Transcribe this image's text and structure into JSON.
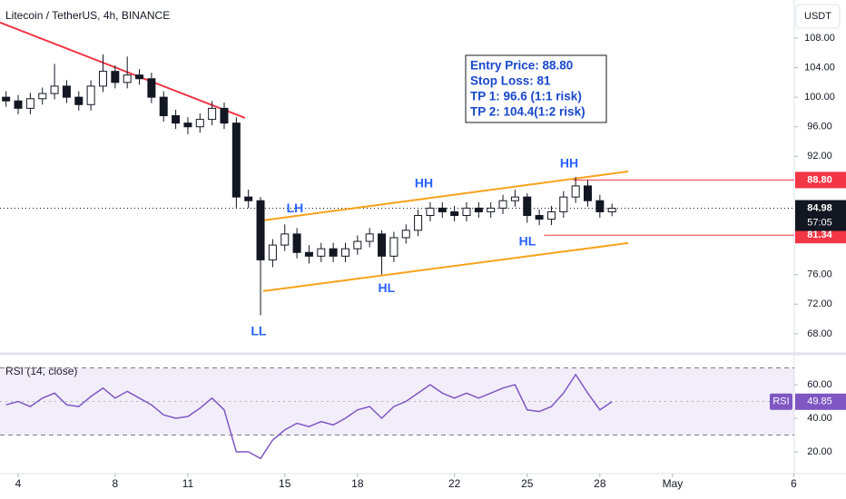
{
  "chart_data": {
    "type": "candlestick",
    "title": "Litecoin / TetherUS, 4h, BINANCE",
    "currency": "USDT",
    "up_color": "#ffffff",
    "down_color": "#131722",
    "wick_color": "#131722",
    "xlim": [
      3.25,
      36.02
    ],
    "xticks": [
      4,
      8,
      11,
      15,
      18,
      22,
      25,
      28,
      {
        "value": 31,
        "label": "May"
      },
      {
        "value": 36,
        "label": "6"
      }
    ],
    "ylim": [
      65.9,
      113.15
    ],
    "yticks": [
      {
        "value": 108,
        "label": "108.00"
      },
      {
        "value": 104,
        "label": "104.00"
      },
      {
        "value": 100,
        "label": "100.00"
      },
      {
        "value": 96,
        "label": "96.00"
      },
      {
        "value": 92,
        "label": "92.00"
      },
      {
        "value": 76,
        "label": "76.00"
      },
      {
        "value": 72,
        "label": "72.00"
      },
      {
        "value": 68,
        "label": "68.00"
      }
    ],
    "x": [
      3.5,
      4,
      4.5,
      5,
      5.5,
      6,
      6.5,
      7,
      7.5,
      8,
      8.5,
      9,
      9.5,
      10,
      10.5,
      11,
      11.5,
      12,
      12.5,
      13,
      13.5,
      14,
      14.5,
      15,
      15.5,
      16,
      16.5,
      17,
      17.5,
      18,
      18.5,
      19,
      19.5,
      20,
      20.5,
      21,
      21.5,
      22,
      22.5,
      23,
      23.5,
      24,
      24.5,
      25,
      25.5,
      26,
      26.5,
      27,
      27.5,
      28,
      28.5
    ],
    "open": [
      100,
      99.5,
      98.5,
      99.8,
      100.5,
      101.5,
      100,
      99,
      101.5,
      103.5,
      102,
      103,
      102.5,
      100,
      97.5,
      96.5,
      96,
      97,
      98.5,
      96.5,
      86.5,
      86,
      78,
      80,
      81.5,
      79,
      78.5,
      79.5,
      78.5,
      79.5,
      80.5,
      81.5,
      78.5,
      81,
      82,
      84,
      85,
      84.5,
      84,
      85,
      84.5,
      85,
      86,
      86.5,
      84,
      83.5,
      84.5,
      86.5,
      88,
      86,
      84.5
    ],
    "high": [
      100.8,
      100.3,
      100.6,
      101.3,
      104.5,
      102.3,
      100.8,
      102.3,
      105.8,
      104.3,
      105.5,
      103.8,
      103.3,
      100.8,
      98.3,
      97.3,
      97.8,
      99.5,
      99.3,
      97.3,
      87.5,
      86.5,
      80.8,
      82.8,
      82.3,
      80,
      80.3,
      80.3,
      80.3,
      81.3,
      82.3,
      82,
      81.8,
      82.8,
      84.8,
      85.8,
      85.8,
      85.3,
      85.8,
      85.8,
      85.8,
      86.8,
      87.5,
      87,
      84.8,
      85.3,
      87.3,
      89.2,
      88.8,
      86.8,
      85.6
    ],
    "low": [
      98.7,
      97.7,
      97.7,
      99,
      99.7,
      99.2,
      98.2,
      98.2,
      100.7,
      101.2,
      101.2,
      101.7,
      99.2,
      96.7,
      95.7,
      95,
      95.2,
      96.2,
      95.7,
      85,
      85,
      70.5,
      77,
      79.2,
      78.2,
      77.5,
      77.7,
      77.7,
      77.7,
      78.7,
      79.7,
      76,
      77.7,
      80.2,
      81.2,
      83.2,
      83.7,
      83.2,
      83.2,
      83.7,
      83.7,
      84.2,
      85.2,
      83,
      82.7,
      82.7,
      83.7,
      85.7,
      85.2,
      83.7,
      83.9
    ],
    "close": [
      99.5,
      98.5,
      99.8,
      100.5,
      101.5,
      100,
      99,
      101.5,
      103.5,
      102,
      103,
      102.5,
      100,
      97.5,
      96.5,
      96,
      97,
      98.5,
      96.5,
      86.5,
      86,
      78,
      80,
      81.5,
      79,
      78.5,
      79.5,
      78.5,
      79.5,
      80.5,
      81.5,
      78.5,
      81,
      82,
      84,
      85,
      84.5,
      84,
      85,
      84.5,
      85,
      86,
      86.5,
      84,
      83.5,
      84.5,
      86.5,
      88,
      86,
      84.5,
      84.98
    ],
    "current_price": {
      "value": 84.98,
      "label": "84.98",
      "countdown": "57:05"
    },
    "price_lines": [
      {
        "value": 88.8,
        "label": "88.80",
        "color": "#f23645",
        "from": 26.9
      },
      {
        "value": 81.34,
        "label": "81.34",
        "color": "#f23645",
        "from": 25.7
      }
    ],
    "trendlines": [
      {
        "color": "#f7a21b",
        "x": [
          14.11,
          29.17
        ],
        "y": [
          83.34,
          89.96
        ]
      },
      {
        "color": "#f7a21b",
        "x": [
          14.11,
          29.17
        ],
        "y": [
          73.77,
          80.27
        ]
      },
      {
        "color": "#f23645",
        "x": [
          3.25,
          13.36
        ],
        "y": [
          110.1,
          97.2
        ]
      }
    ],
    "annotations": [
      {
        "text": "LL",
        "x": 13.92,
        "y": 68.25
      },
      {
        "text": "HL",
        "x": 19.2,
        "y": 74.1
      },
      {
        "text": "LH",
        "x": 15.42,
        "y": 84.9
      },
      {
        "text": "HH",
        "x": 20.74,
        "y": 88.25
      },
      {
        "text": "HH",
        "x": 26.73,
        "y": 90.95
      },
      {
        "text": "HL",
        "x": 25.01,
        "y": 80.4
      }
    ],
    "annotation_color": "#2962ff",
    "info_box": [
      "Entry Price: 88.80",
      "Stop Loss: 81",
      "TP 1: 96.6 (1:1 risk)",
      "TP 2: 104.4(1:2 risk)"
    ],
    "rsi": {
      "title": "RSI (14, close)",
      "color": "#7e57c2",
      "ylim": [
        7,
        75.7
      ],
      "yticks": [
        {
          "value": 60,
          "label": "60.00"
        },
        {
          "value": 40,
          "label": "40.00"
        },
        {
          "value": 20,
          "label": "20.00"
        }
      ],
      "bands": [
        70,
        30
      ],
      "values": [
        48,
        50,
        47,
        52,
        55,
        48,
        47,
        53,
        58,
        52,
        56,
        52,
        48,
        42,
        40,
        41,
        46,
        52,
        45,
        20,
        20,
        16,
        27,
        33,
        37,
        35,
        38,
        36,
        40,
        45,
        47,
        40,
        47,
        50,
        55,
        60,
        55,
        52,
        55,
        52,
        55,
        58,
        60,
        45,
        44,
        47,
        55,
        66,
        55,
        45,
        49.85
      ],
      "badge_text": "RSI",
      "current": {
        "value": 49.85,
        "label": "49.85"
      }
    }
  }
}
